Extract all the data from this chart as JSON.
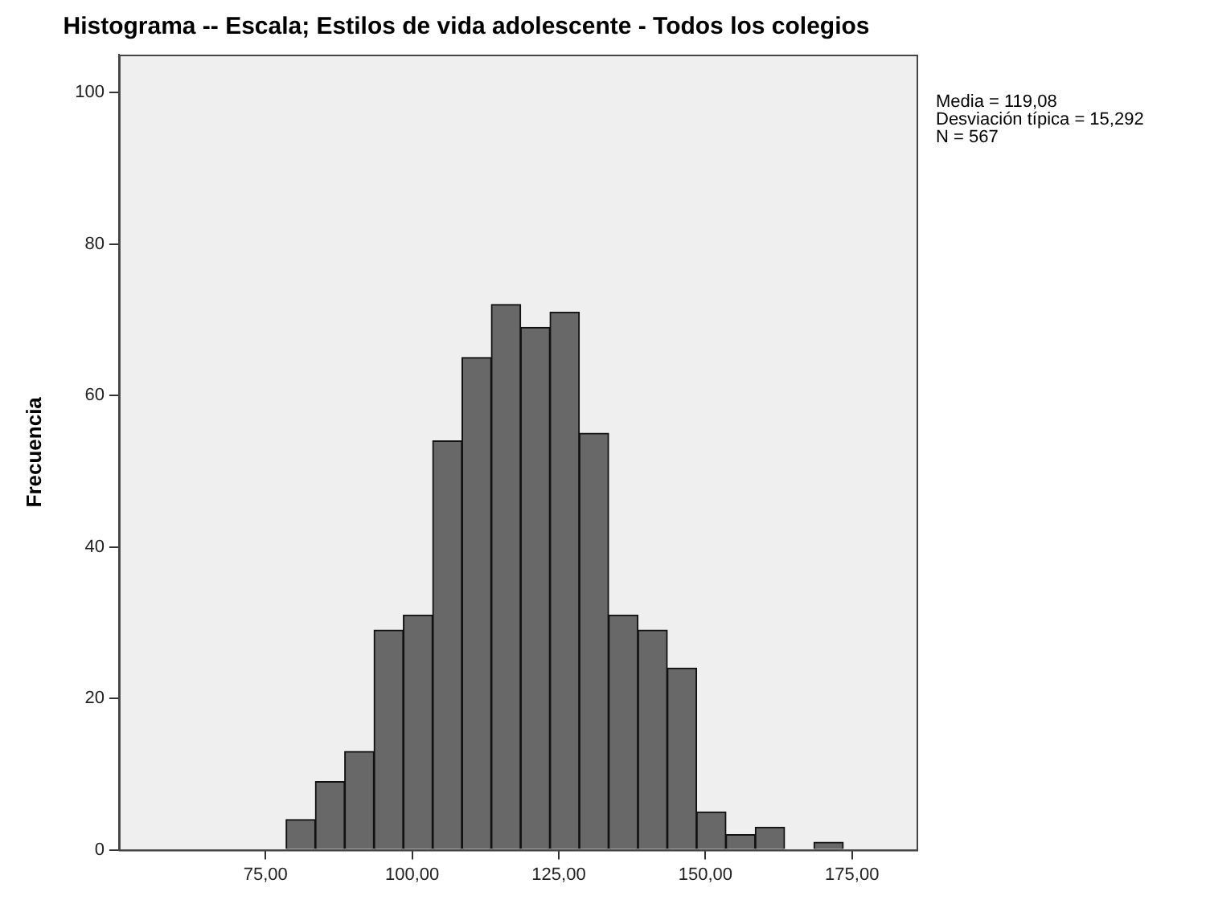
{
  "chart_data": {
    "type": "histogram",
    "title": "Histograma -- Escala; Estilos de vida adolescente - Todos los colegios",
    "ylabel": "Frecuencia",
    "bins": [
      78.5,
      83.5,
      88.5,
      93.5,
      98.5,
      103.5,
      108.5,
      113.5,
      118.5,
      123.5,
      128.5,
      133.5,
      138.5,
      143.5,
      148.5,
      153.5,
      158.5,
      163.5,
      168.5,
      173.5
    ],
    "values": [
      4,
      9,
      13,
      29,
      31,
      54,
      65,
      72,
      69,
      71,
      55,
      31,
      29,
      24,
      5,
      2,
      3,
      0,
      1
    ],
    "color": "#686868",
    "xlim": [
      50,
      186
    ],
    "xticks": [
      {
        "value": 75,
        "label": "75,00"
      },
      {
        "value": 100,
        "label": "100,00"
      },
      {
        "value": 125,
        "label": "125,00"
      },
      {
        "value": 150,
        "label": "150,00"
      },
      {
        "value": 175,
        "label": "175,00"
      }
    ],
    "ylim": [
      0,
      105
    ],
    "yticks": [
      0,
      20,
      40,
      60,
      80,
      100
    ],
    "grid": false,
    "legend": false,
    "annotations": [
      "Media = 119,08",
      "Desviación típica = 15,292",
      "N = 567"
    ]
  }
}
